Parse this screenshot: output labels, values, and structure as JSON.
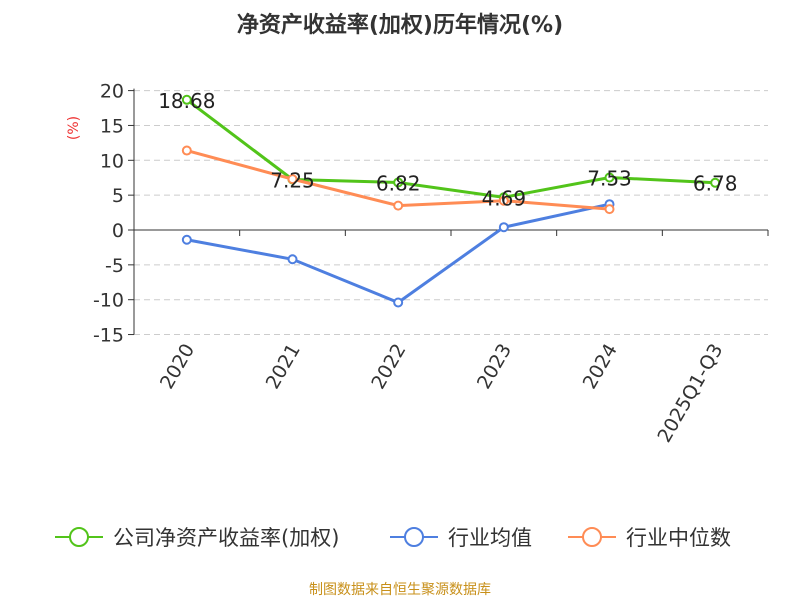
{
  "chart_data": {
    "type": "line",
    "title": "净资产收益率(加权)历年情况(%)",
    "ylabel": "(%)",
    "categories": [
      "2020",
      "2021",
      "2022",
      "2023",
      "2024",
      "2025Q1-Q3"
    ],
    "ylim": [
      -15,
      20
    ],
    "yticks": [
      20,
      15,
      10,
      5,
      0,
      -5,
      -10,
      -15
    ],
    "grid": true,
    "legend_position": "bottom",
    "series": [
      {
        "name": "公司净资产收益率(加权)",
        "color": "#52c41a",
        "values": [
          18.68,
          7.25,
          6.82,
          4.69,
          7.53,
          6.78
        ],
        "labels": [
          "18.68",
          "7.25",
          "6.82",
          "4.69",
          "7.53",
          "6.78"
        ]
      },
      {
        "name": "行业均值",
        "color": "#4e7fe0",
        "values": [
          -1.4,
          -4.2,
          -10.4,
          0.4,
          3.7,
          null
        ]
      },
      {
        "name": "行业中位数",
        "color": "#ff8c55",
        "values": [
          11.4,
          7.3,
          3.5,
          4.2,
          3.0,
          null
        ]
      }
    ],
    "source": "制图数据来自恒生聚源数据库"
  }
}
